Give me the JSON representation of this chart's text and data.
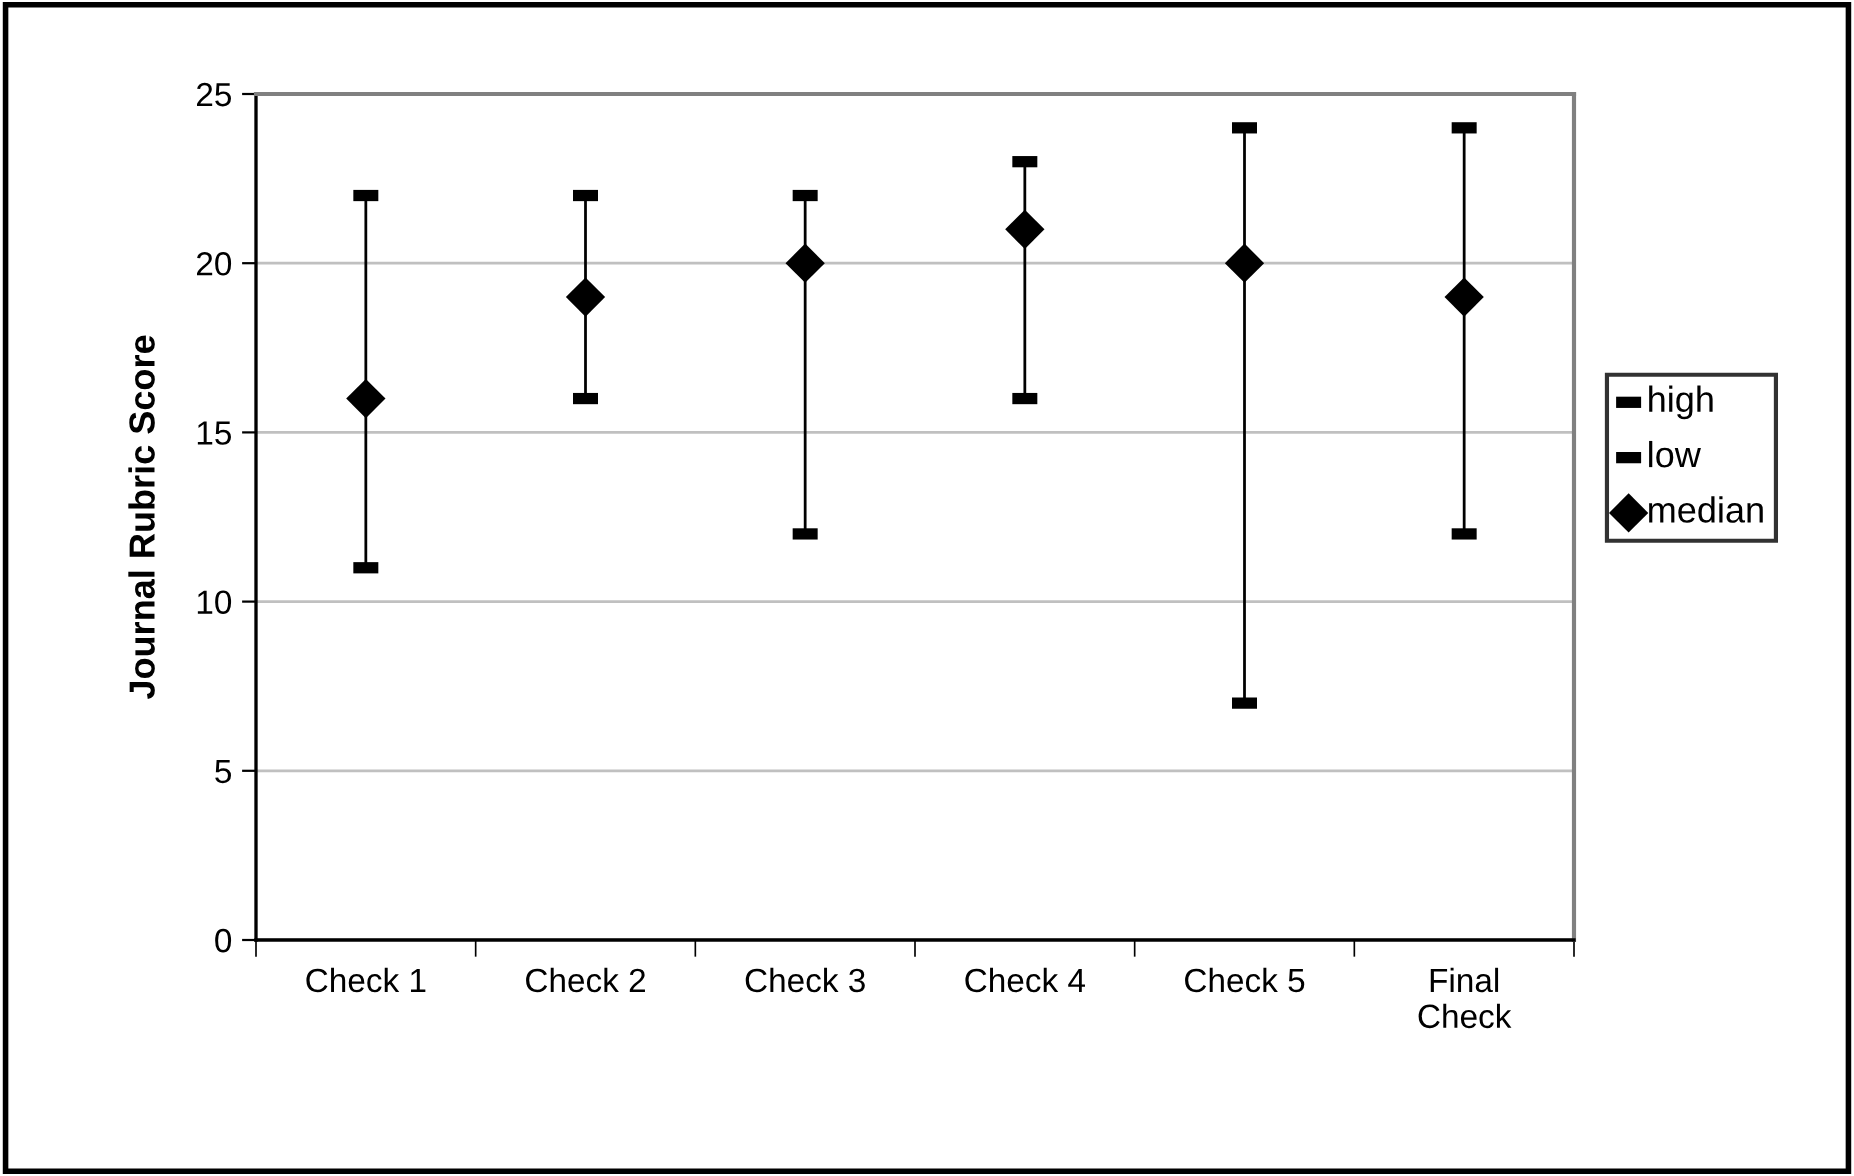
{
  "chart_data": {
    "type": "scatter",
    "ylabel": "Journal Rubric Score",
    "categories": [
      "Check 1",
      "Check 2",
      "Check 3",
      "Check 4",
      "Check 5",
      "Final\nCheck"
    ],
    "series": [
      {
        "name": "high",
        "color": "#000000",
        "marker": "square",
        "values": [
          22,
          22,
          22,
          23,
          24,
          24
        ]
      },
      {
        "name": "low",
        "color": "#000000",
        "marker": "square",
        "values": [
          11,
          16,
          12,
          16,
          7,
          12
        ]
      },
      {
        "name": "median",
        "color": "#000000",
        "marker": "diamond",
        "values": [
          16,
          19,
          20,
          21,
          20,
          19
        ]
      }
    ],
    "ylim": [
      0,
      25
    ],
    "yticks": [
      0,
      5,
      10,
      15,
      20,
      25
    ],
    "grid": "y",
    "legend": "right"
  }
}
